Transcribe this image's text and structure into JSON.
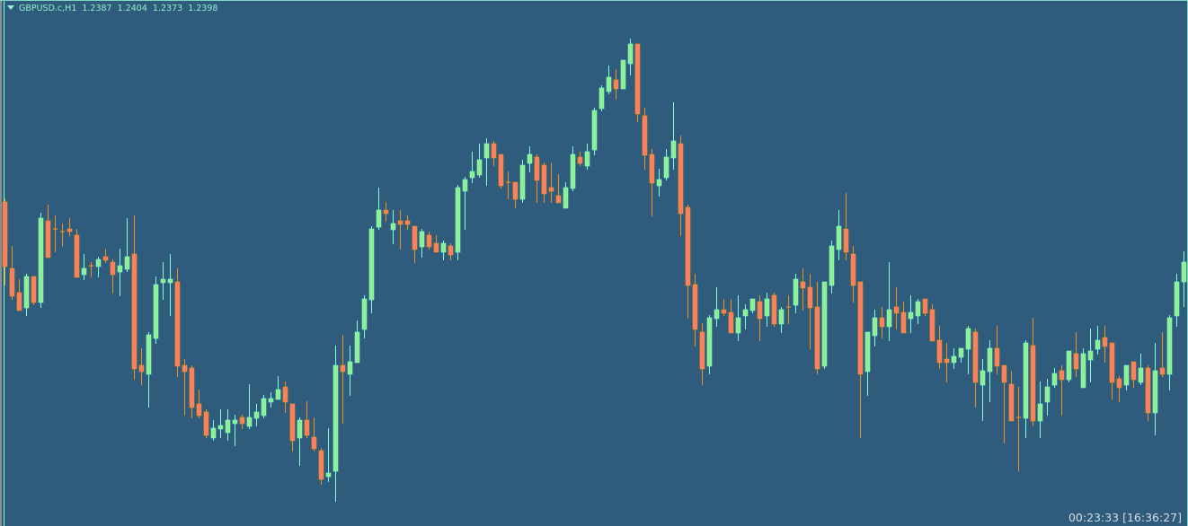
{
  "header": {
    "symbol": "GBPUSD.c,H1",
    "open": "1.2387",
    "high": "1.2404",
    "low": "1.2373",
    "close": "1.2398",
    "menu_icon": "triangle-down-icon"
  },
  "timer": "00:23:33 [16:36:27]",
  "colors": {
    "background": "#2f5b7c",
    "bull_body": "#90ee90",
    "bull_wick": "#7fffd4",
    "bear_body": "#fa8060",
    "bear_wick": "#f0901c"
  },
  "chart_data": {
    "type": "candlestick",
    "symbol": "GBPUSD.c",
    "timeframe": "H1",
    "ylim": [
      1.22505,
      1.25435
    ],
    "grid": false,
    "columns": [
      "open",
      "high",
      "low",
      "close"
    ],
    "candles": [
      [
        1.24315,
        1.24335,
        1.2385,
        1.23955
      ],
      [
        1.23945,
        1.2407,
        1.2377,
        1.2379
      ],
      [
        1.2381,
        1.23885,
        1.2371,
        1.2371
      ],
      [
        1.23725,
        1.23915,
        1.2368,
        1.239
      ],
      [
        1.239,
        1.239,
        1.2374,
        1.23755
      ],
      [
        1.23755,
        1.24255,
        1.23725,
        1.24225
      ],
      [
        1.2421,
        1.243,
        1.24005,
        1.24005
      ],
      [
        1.24165,
        1.2424,
        1.24035,
        1.24165
      ],
      [
        1.2415,
        1.24195,
        1.24065,
        1.2415
      ],
      [
        1.24165,
        1.24225,
        1.24125,
        1.2415
      ],
      [
        1.2413,
        1.24165,
        1.23895,
        1.23895
      ],
      [
        1.2391,
        1.24025,
        1.2388,
        1.23945
      ],
      [
        1.2396,
        1.2398,
        1.23895,
        1.2396
      ],
      [
        1.23955,
        1.2401,
        1.23895,
        1.23995
      ],
      [
        1.2401,
        1.24055,
        1.23975,
        1.2399
      ],
      [
        1.2398,
        1.23995,
        1.23805,
        1.2391
      ],
      [
        1.23925,
        1.24055,
        1.2379,
        1.2396
      ],
      [
        1.2394,
        1.24225,
        1.23925,
        1.2401
      ],
      [
        1.24025,
        1.2424,
        1.23325,
        1.23385
      ],
      [
        1.23405,
        1.235,
        1.23295,
        1.2337
      ],
      [
        1.23355,
        1.2359,
        1.2317,
        1.23575
      ],
      [
        1.23555,
        1.239,
        1.23525,
        1.23855
      ],
      [
        1.23865,
        1.2398,
        1.2377,
        1.23885
      ],
      [
        1.23865,
        1.24025,
        1.2368,
        1.23885
      ],
      [
        1.2387,
        1.23945,
        1.2334,
        1.234
      ],
      [
        1.23405,
        1.2344,
        1.23125,
        1.2337
      ],
      [
        1.2339,
        1.23405,
        1.2311,
        1.2317
      ],
      [
        1.2319,
        1.2327,
        1.2311,
        1.23125
      ],
      [
        1.23145,
        1.2316,
        1.23,
        1.23015
      ],
      [
        1.23,
        1.231,
        1.22985,
        1.23055
      ],
      [
        1.2305,
        1.2316,
        1.23,
        1.2307
      ],
      [
        1.2303,
        1.2316,
        1.22985,
        1.231
      ],
      [
        1.2308,
        1.2313,
        1.22955,
        1.231
      ],
      [
        1.23115,
        1.2313,
        1.2305,
        1.2308
      ],
      [
        1.23065,
        1.233,
        1.2305,
        1.23115
      ],
      [
        1.2311,
        1.2319,
        1.23065,
        1.23145
      ],
      [
        1.23125,
        1.2324,
        1.2311,
        1.2322
      ],
      [
        1.232,
        1.23255,
        1.2317,
        1.2322
      ],
      [
        1.23215,
        1.23345,
        1.23215,
        1.2327
      ],
      [
        1.23285,
        1.23315,
        1.2314,
        1.232
      ],
      [
        1.2319,
        1.2319,
        1.22925,
        1.22985
      ],
      [
        1.23,
        1.23115,
        1.22845,
        1.231
      ],
      [
        1.231,
        1.23205,
        1.23,
        1.23015
      ],
      [
        1.23005,
        1.23115,
        1.22925,
        1.2294
      ],
      [
        1.2293,
        1.22945,
        1.2274,
        1.2277
      ],
      [
        1.22785,
        1.23055,
        1.22755,
        1.22805
      ],
      [
        1.22815,
        1.23515,
        1.22645,
        1.23405
      ],
      [
        1.23405,
        1.23575,
        1.2308,
        1.2337
      ],
      [
        1.23355,
        1.23515,
        1.23235,
        1.23425
      ],
      [
        1.2342,
        1.23655,
        1.2342,
        1.2359
      ],
      [
        1.23605,
        1.23795,
        1.23555,
        1.23775
      ],
      [
        1.2377,
        1.2418,
        1.23695,
        1.24165
      ],
      [
        1.24175,
        1.24395,
        1.2416,
        1.2427
      ],
      [
        1.2427,
        1.24315,
        1.24205,
        1.2425
      ],
      [
        1.2416,
        1.2427,
        1.2408,
        1.24195
      ],
      [
        1.2421,
        1.2427,
        1.2405,
        1.2419
      ],
      [
        1.2421,
        1.2424,
        1.2416,
        1.2419
      ],
      [
        1.2418,
        1.2418,
        1.23975,
        1.2405
      ],
      [
        1.24065,
        1.24165,
        1.24005,
        1.2415
      ],
      [
        1.2413,
        1.2415,
        1.2405,
        1.24065
      ],
      [
        1.24085,
        1.2413,
        1.24035,
        1.24035
      ],
      [
        1.24035,
        1.241,
        1.2399,
        1.24085
      ],
      [
        1.2407,
        1.24085,
        1.2399,
        1.2402
      ],
      [
        1.24035,
        1.2441,
        1.2399,
        1.24395
      ],
      [
        1.24375,
        1.24455,
        1.2416,
        1.2444
      ],
      [
        1.2445,
        1.24595,
        1.2442,
        1.24485
      ],
      [
        1.24465,
        1.2464,
        1.2445,
        1.2455
      ],
      [
        1.2456,
        1.2467,
        1.24405,
        1.2464
      ],
      [
        1.2464,
        1.24655,
        1.24515,
        1.2456
      ],
      [
        1.2458,
        1.2458,
        1.2439,
        1.24405
      ],
      [
        1.24425,
        1.24485,
        1.2433,
        1.24425
      ],
      [
        1.24425,
        1.24425,
        1.2428,
        1.2433
      ],
      [
        1.2433,
        1.2455,
        1.2431,
        1.2452
      ],
      [
        1.2453,
        1.24625,
        1.2448,
        1.2458
      ],
      [
        1.24565,
        1.2458,
        1.2431,
        1.24435
      ],
      [
        1.2452,
        1.24535,
        1.2431,
        1.2436
      ],
      [
        1.24395,
        1.24535,
        1.2431,
        1.24375
      ],
      [
        1.2435,
        1.2447,
        1.2431,
        1.2431
      ],
      [
        1.2428,
        1.24425,
        1.2428,
        1.24395
      ],
      [
        1.2439,
        1.24625,
        1.24375,
        1.2458
      ],
      [
        1.24565,
        1.24595,
        1.24515,
        1.2453
      ],
      [
        1.24515,
        1.2464,
        1.24495,
        1.24595
      ],
      [
        1.24605,
        1.2484,
        1.24575,
        1.24825
      ],
      [
        1.24835,
        1.24965,
        1.2482,
        1.2495
      ],
      [
        1.2493,
        1.25075,
        1.24915,
        1.2501
      ],
      [
        1.24995,
        1.25055,
        1.24885,
        1.24945
      ],
      [
        1.24945,
        1.25105,
        1.24945,
        1.25105
      ],
      [
        1.25085,
        1.25225,
        1.2502,
        1.25195
      ],
      [
        1.25195,
        1.25195,
        1.2476,
        1.24805
      ],
      [
        1.24795,
        1.2484,
        1.24495,
        1.24575
      ],
      [
        1.2458,
        1.2461,
        1.24235,
        1.2442
      ],
      [
        1.24405,
        1.245,
        1.24345,
        1.2444
      ],
      [
        1.2445,
        1.2461,
        1.24435,
        1.24565
      ],
      [
        1.2456,
        1.2487,
        1.24495,
        1.24655
      ],
      [
        1.2464,
        1.24685,
        1.24125,
        1.2425
      ],
      [
        1.24285,
        1.243,
        1.23665,
        1.2385
      ],
      [
        1.23855,
        1.23915,
        1.2351,
        1.23605
      ],
      [
        1.2359,
        1.2364,
        1.23295,
        1.23385
      ],
      [
        1.234,
        1.23685,
        1.23355,
        1.2367
      ],
      [
        1.23665,
        1.2384,
        1.2362,
        1.23715
      ],
      [
        1.23715,
        1.23775,
        1.2368,
        1.23695
      ],
      [
        1.237,
        1.23775,
        1.23585,
        1.23585
      ],
      [
        1.23585,
        1.23795,
        1.2354,
        1.2367
      ],
      [
        1.2368,
        1.23745,
        1.23605,
        1.23715
      ],
      [
        1.2371,
        1.23775,
        1.23695,
        1.23775
      ],
      [
        1.2376,
        1.23795,
        1.2354,
        1.23665
      ],
      [
        1.2368,
        1.2381,
        1.2362,
        1.23775
      ],
      [
        1.23795,
        1.2381,
        1.2362,
        1.23635
      ],
      [
        1.23635,
        1.2373,
        1.23585,
        1.23715
      ],
      [
        1.2373,
        1.23795,
        1.23635,
        1.2373
      ],
      [
        1.2374,
        1.23915,
        1.23695,
        1.23885
      ],
      [
        1.2387,
        1.23945,
        1.2371,
        1.23835
      ],
      [
        1.2384,
        1.23915,
        1.23495,
        1.23725
      ],
      [
        1.2373,
        1.2387,
        1.23355,
        1.23385
      ],
      [
        1.234,
        1.2387,
        1.23385,
        1.2387
      ],
      [
        1.2385,
        1.241,
        1.23805,
        1.2407
      ],
      [
        1.2405,
        1.2427,
        1.2399,
        1.2418
      ],
      [
        1.24165,
        1.24365,
        1.2399,
        1.24035
      ],
      [
        1.24025,
        1.2407,
        1.23755,
        1.2385
      ],
      [
        1.2387,
        1.2387,
        1.23,
        1.23355
      ],
      [
        1.2337,
        1.2359,
        1.23235,
        1.2359
      ],
      [
        1.2357,
        1.23715,
        1.2351,
        1.2367
      ],
      [
        1.2367,
        1.2373,
        1.23555,
        1.2362
      ],
      [
        1.2362,
        1.2398,
        1.2354,
        1.23715
      ],
      [
        1.2373,
        1.2384,
        1.23605,
        1.23695
      ],
      [
        1.237,
        1.2376,
        1.23585,
        1.23585
      ],
      [
        1.23665,
        1.23795,
        1.23585,
        1.237
      ],
      [
        1.2368,
        1.23775,
        1.23635,
        1.2376
      ],
      [
        1.23775,
        1.23775,
        1.2368,
        1.23695
      ],
      [
        1.23715,
        1.23745,
        1.2354,
        1.2354
      ],
      [
        1.23545,
        1.23625,
        1.23385,
        1.2342
      ],
      [
        1.2344,
        1.2353,
        1.2331,
        1.2342
      ],
      [
        1.2342,
        1.235,
        1.23385,
        1.23455
      ],
      [
        1.2345,
        1.235,
        1.2342,
        1.235
      ],
      [
        1.23495,
        1.23625,
        1.23355,
        1.2361
      ],
      [
        1.2359,
        1.2361,
        1.2317,
        1.2331
      ],
      [
        1.23295,
        1.2344,
        1.23095,
        1.23375
      ],
      [
        1.2337,
        1.23545,
        1.232,
        1.235
      ],
      [
        1.235,
        1.23625,
        1.23355,
        1.234
      ],
      [
        1.23405,
        1.23405,
        1.2297,
        1.2331
      ],
      [
        1.233,
        1.23375,
        1.23095,
        1.23095
      ],
      [
        1.23115,
        1.23285,
        1.22815,
        1.23115
      ],
      [
        1.2311,
        1.23545,
        1.23,
        1.2353
      ],
      [
        1.23515,
        1.2367,
        1.23065,
        1.23095
      ],
      [
        1.23095,
        1.23315,
        1.23,
        1.2319
      ],
      [
        1.232,
        1.2333,
        1.23125,
        1.23285
      ],
      [
        1.23295,
        1.2339,
        1.2328,
        1.2336
      ],
      [
        1.23375,
        1.23405,
        1.23125,
        1.23325
      ],
      [
        1.23325,
        1.23485,
        1.2331,
        1.23485
      ],
      [
        1.2347,
        1.2359,
        1.2334,
        1.23385
      ],
      [
        1.2328,
        1.235,
        1.2328,
        1.2347
      ],
      [
        1.23435,
        1.2361,
        1.2331,
        1.23485
      ],
      [
        1.23495,
        1.23625,
        1.23465,
        1.23545
      ],
      [
        1.2356,
        1.23625,
        1.2342,
        1.2351
      ],
      [
        1.2353,
        1.2353,
        1.23215,
        1.2331
      ],
      [
        1.2333,
        1.23345,
        1.232,
        1.2328
      ],
      [
        1.23295,
        1.23405,
        1.23265,
        1.23405
      ],
      [
        1.23425,
        1.23425,
        1.2328,
        1.23325
      ],
      [
        1.2331,
        1.2347,
        1.23295,
        1.2339
      ],
      [
        1.2339,
        1.23405,
        1.23095,
        1.2314
      ],
      [
        1.2314,
        1.2353,
        1.23015,
        1.23375
      ],
      [
        1.2339,
        1.2359,
        1.2334,
        1.23355
      ],
      [
        1.23355,
        1.23685,
        1.23265,
        1.2367
      ],
      [
        1.2368,
        1.23915,
        1.2362,
        1.2387
      ],
      [
        1.2387,
        1.2404,
        1.2373,
        1.2398
      ]
    ]
  }
}
